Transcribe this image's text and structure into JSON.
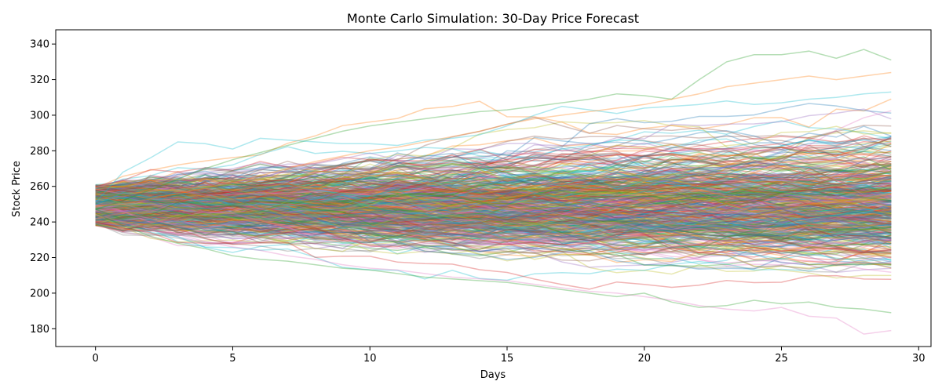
{
  "chart_data": {
    "type": "line",
    "title": "Monte Carlo Simulation: 30-Day Price Forecast",
    "xlabel": "Days",
    "ylabel": "Stock Price",
    "xlim": [
      -1.45,
      30.45
    ],
    "ylim": [
      170,
      348
    ],
    "xticks": [
      0,
      5,
      10,
      15,
      20,
      25,
      30
    ],
    "yticks": [
      180,
      200,
      220,
      240,
      260,
      280,
      300,
      320,
      340
    ],
    "grid": false,
    "legend": "none",
    "days": 30,
    "series_count": 500,
    "start_price_range": [
      238,
      261
    ],
    "series_alpha": 0.35,
    "colors": [
      "#1f77b4",
      "#ff7f0e",
      "#2ca02c",
      "#d62728",
      "#9467bd",
      "#8c564b",
      "#e377c2",
      "#7f7f7f",
      "#bcbd22",
      "#17becf"
    ],
    "highlight_series": [
      {
        "x": [
          0,
          1,
          2,
          3,
          4,
          5,
          6,
          7,
          8,
          9,
          10,
          11,
          12,
          13,
          14,
          15,
          16,
          17,
          18,
          19,
          20,
          21,
          22,
          23,
          24,
          25,
          26,
          27,
          28,
          29
        ],
        "values": [
          247,
          252,
          258,
          264,
          270,
          275,
          279,
          283,
          287,
          291,
          294,
          296,
          298,
          300,
          302,
          303,
          305,
          307,
          309,
          312,
          311,
          309,
          320,
          330,
          334,
          334,
          336,
          332,
          337,
          331
        ],
        "color": "#2ca02c"
      },
      {
        "x": [
          0,
          1,
          2,
          3,
          4,
          5,
          6,
          7,
          8,
          9,
          10,
          11,
          12,
          13,
          14,
          15,
          16,
          17,
          18,
          19,
          20,
          21,
          22,
          23,
          24,
          25,
          26,
          27,
          28,
          29
        ],
        "values": [
          244,
          240,
          236,
          233,
          229,
          226,
          224,
          221,
          219,
          216,
          214,
          213,
          211,
          209,
          208,
          207,
          205,
          203,
          201,
          200,
          198,
          196,
          193,
          191,
          190,
          192,
          187,
          186,
          177,
          179
        ],
        "color": "#e377c2"
      },
      {
        "x": [
          0,
          1,
          2,
          3,
          4,
          5,
          6,
          7,
          8,
          9,
          10,
          11,
          12,
          13,
          14,
          15,
          16,
          17,
          18,
          19,
          20,
          21,
          22,
          23,
          24,
          25,
          26,
          27,
          28,
          29
        ],
        "values": [
          251,
          268,
          276,
          285,
          284,
          281,
          287,
          286,
          285,
          284,
          284,
          283,
          286,
          287,
          289,
          294,
          300,
          305,
          303,
          301,
          304,
          305,
          306,
          308,
          306,
          307,
          309,
          310,
          312,
          313
        ],
        "color": "#17becf"
      },
      {
        "x": [
          0,
          1,
          2,
          3,
          4,
          5,
          6,
          7,
          8,
          9,
          10,
          11,
          12,
          13,
          14,
          15,
          16,
          17,
          18,
          19,
          20,
          21,
          22,
          23,
          24,
          25,
          26,
          27,
          28,
          29
        ],
        "values": [
          245,
          238,
          232,
          228,
          225,
          221,
          219,
          218,
          216,
          214,
          213,
          211,
          209,
          208,
          207,
          206,
          204,
          202,
          200,
          198,
          200,
          195,
          192,
          193,
          196,
          194,
          195,
          192,
          191,
          189
        ],
        "color": "#2ca02c"
      },
      {
        "x": [
          0,
          1,
          2,
          3,
          4,
          5,
          6,
          7,
          8,
          9,
          10,
          11,
          12,
          13,
          14,
          15,
          16,
          17,
          18,
          19,
          20,
          21,
          22,
          23,
          24,
          25,
          26,
          27,
          28,
          29
        ],
        "values": [
          249,
          250,
          253,
          256,
          259,
          262,
          266,
          270,
          274,
          277,
          280,
          282,
          285,
          288,
          291,
          295,
          298,
          300,
          302,
          304,
          306,
          309,
          312,
          316,
          318,
          320,
          322,
          320,
          322,
          324
        ],
        "color": "#ff7f0e"
      }
    ]
  }
}
